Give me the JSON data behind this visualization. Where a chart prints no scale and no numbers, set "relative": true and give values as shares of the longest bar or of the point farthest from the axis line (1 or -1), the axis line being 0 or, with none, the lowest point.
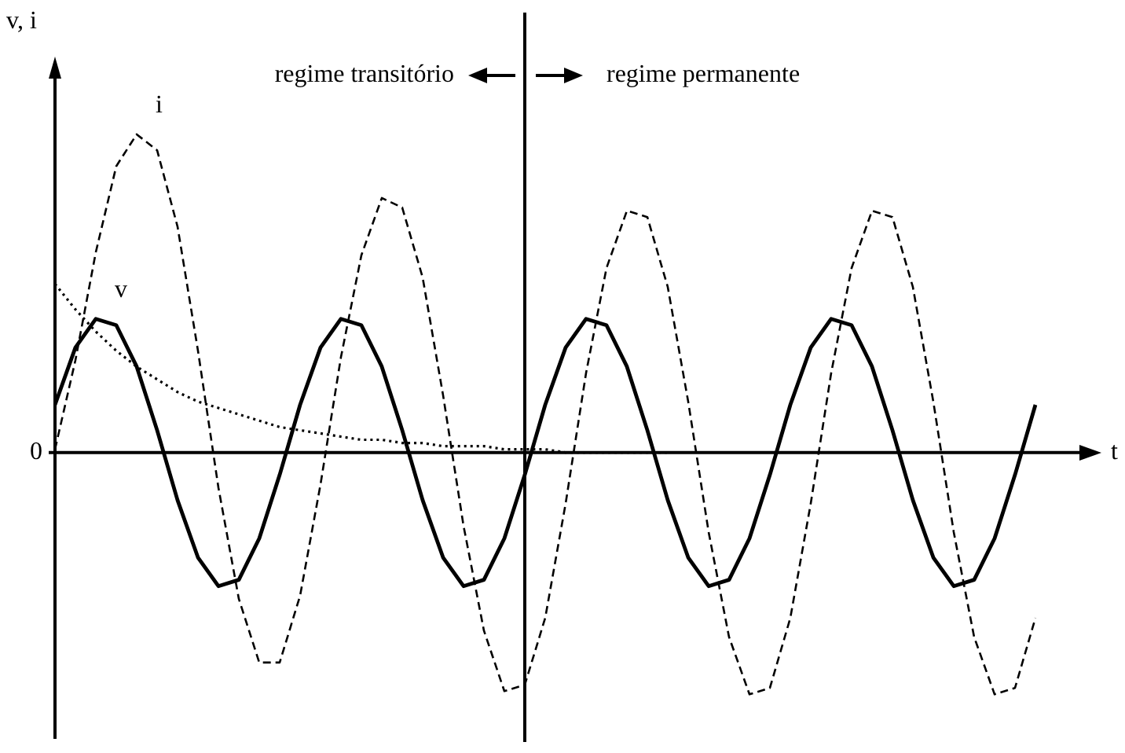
{
  "chart_data": {
    "type": "line",
    "relative": true,
    "xlabel": "t",
    "ylabel": "v, i",
    "marker": "none",
    "legend": false,
    "categories": [
      null,
      null,
      null,
      null,
      null,
      null,
      null,
      null,
      null,
      null,
      null,
      null,
      null,
      null,
      null,
      null,
      null,
      null,
      null,
      null,
      null,
      null,
      null,
      null,
      null,
      null,
      null,
      null,
      null,
      null,
      null,
      null,
      null,
      null,
      null,
      null,
      null,
      null,
      null,
      null,
      null,
      null,
      null,
      null,
      null,
      null,
      null,
      null,
      null
    ],
    "series": [
      {
        "name": "v",
        "color": "#000000",
        "line_style": "solid",
        "values": [
          0.15,
          0.33,
          0.42,
          0.4,
          0.27,
          0.07,
          -0.15,
          -0.33,
          -0.42,
          -0.4,
          -0.27,
          -0.07,
          0.15,
          0.33,
          0.42,
          0.4,
          0.27,
          0.07,
          -0.15,
          -0.33,
          -0.42,
          -0.4,
          -0.27,
          -0.07,
          0.15,
          0.33,
          0.42,
          0.4,
          0.27,
          0.07,
          -0.15,
          -0.33,
          -0.42,
          -0.4,
          -0.27,
          -0.07,
          0.15,
          0.33,
          0.42,
          0.4,
          0.27,
          0.07,
          -0.15,
          -0.33,
          -0.42,
          -0.4,
          -0.27,
          -0.07,
          0.15
        ]
      },
      {
        "name": "i",
        "color": "#000000",
        "line_style": "dashed",
        "values": [
          0.01,
          0.29,
          0.63,
          0.9,
          1,
          0.95,
          0.71,
          0.32,
          -0.11,
          -0.46,
          -0.66,
          -0.66,
          -0.45,
          -0.1,
          0.3,
          0.62,
          0.8,
          0.77,
          0.55,
          0.18,
          -0.23,
          -0.56,
          -0.75,
          -0.73,
          -0.52,
          -0.16,
          0.25,
          0.58,
          0.76,
          0.74,
          0.52,
          0.16,
          -0.25,
          -0.58,
          -0.76,
          -0.74,
          -0.52,
          -0.16,
          0.25,
          0.58,
          0.76,
          0.74,
          0.52,
          0.16,
          -0.25,
          -0.58,
          -0.76,
          -0.74,
          -0.52
        ]
      },
      {
        "color": "#000000",
        "line_style": "dotted",
        "values": [
          0.53,
          0.45,
          0.38,
          0.32,
          0.27,
          0.23,
          0.19,
          0.16,
          0.14,
          0.12,
          0.1,
          0.08,
          0.07,
          0.06,
          0.05,
          0.04,
          0.04,
          0.03,
          0.03,
          0.02,
          0.02,
          0.02,
          0.01,
          0.01,
          0.01,
          0,
          0,
          0,
          0,
          0,
          0,
          null,
          null,
          null,
          null,
          null,
          null,
          null,
          null,
          null,
          null,
          null,
          null,
          null,
          null,
          null,
          null,
          null,
          null
        ]
      }
    ],
    "annotations": [
      "regime transitório",
      "regime permanente",
      "0"
    ]
  }
}
